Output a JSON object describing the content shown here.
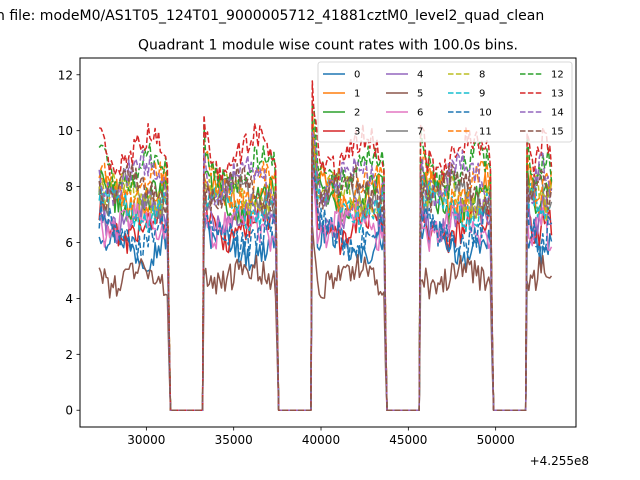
{
  "chart_data": {
    "type": "line",
    "suptitle": "n file: modeM0/AS1T05_124T01_9000005712_41881cztM0_level2_quad_clean",
    "title": "Quadrant 1 module wise count rates with 100.0s bins.",
    "xlabel": "",
    "ylabel": "",
    "x_offset_label": "+4.255e8",
    "xlim": [
      26200,
      54600
    ],
    "ylim": [
      -0.6,
      12.6
    ],
    "xticks": [
      30000,
      35000,
      40000,
      45000,
      50000
    ],
    "xtick_labels": [
      "30000",
      "35000",
      "40000",
      "45000",
      "50000"
    ],
    "yticks": [
      0,
      2,
      4,
      6,
      8,
      10,
      12
    ],
    "ytick_labels": [
      "0",
      "2",
      "4",
      "6",
      "8",
      "10",
      "12"
    ],
    "grid": false,
    "legend_position": "upper right",
    "legend_columns": 4,
    "gti_segments": [
      [
        27300,
        31300
      ],
      [
        33300,
        37500
      ],
      [
        39500,
        43700
      ],
      [
        45700,
        49800
      ],
      [
        51800,
        53200
      ]
    ],
    "gap_value": 0,
    "series": [
      {
        "name": "0",
        "color": "#1f77b4",
        "dash": "solid",
        "mean": 5.9,
        "amp": 0.45,
        "start": 6.2
      },
      {
        "name": "1",
        "color": "#ff7f0e",
        "dash": "solid",
        "mean": 7.6,
        "amp": 0.5,
        "start": 7.8
      },
      {
        "name": "2",
        "color": "#2ca02c",
        "dash": "solid",
        "mean": 7.5,
        "amp": 0.5,
        "start": 7.7
      },
      {
        "name": "3",
        "color": "#d62728",
        "dash": "solid",
        "mean": 6.5,
        "amp": 0.45,
        "start": 6.8
      },
      {
        "name": "4",
        "color": "#9467bd",
        "dash": "solid",
        "mean": 6.9,
        "amp": 0.45,
        "start": 7.1
      },
      {
        "name": "5",
        "color": "#8c564b",
        "dash": "solid",
        "mean": 4.8,
        "amp": 0.35,
        "start": 5.1
      },
      {
        "name": "6",
        "color": "#e377c2",
        "dash": "solid",
        "mean": 6.6,
        "amp": 0.45,
        "start": 6.9
      },
      {
        "name": "7",
        "color": "#7f7f7f",
        "dash": "solid",
        "mean": 7.7,
        "amp": 0.5,
        "start": 8.0
      },
      {
        "name": "8",
        "color": "#bcbd22",
        "dash": "dashed",
        "mean": 7.7,
        "amp": 0.5,
        "start": 8.0
      },
      {
        "name": "9",
        "color": "#17becf",
        "dash": "dashed",
        "mean": 7.3,
        "amp": 0.5,
        "start": 7.5
      },
      {
        "name": "10",
        "color": "#1f77b4",
        "dash": "dashed",
        "mean": 6.3,
        "amp": 0.45,
        "start": 6.5
      },
      {
        "name": "11",
        "color": "#ff7f0e",
        "dash": "dashed",
        "mean": 8.0,
        "amp": 0.5,
        "start": 8.3
      },
      {
        "name": "12",
        "color": "#2ca02c",
        "dash": "dashed",
        "mean": 8.6,
        "amp": 0.55,
        "start": 9.4
      },
      {
        "name": "13",
        "color": "#d62728",
        "dash": "dashed",
        "mean": 9.2,
        "amp": 0.6,
        "start": 10.1
      },
      {
        "name": "14",
        "color": "#9467bd",
        "dash": "dashed",
        "mean": 8.3,
        "amp": 0.55,
        "start": 8.6
      },
      {
        "name": "15",
        "color": "#8c564b",
        "dash": "dashed",
        "mean": 7.9,
        "amp": 0.5,
        "start": 8.2
      }
    ]
  }
}
